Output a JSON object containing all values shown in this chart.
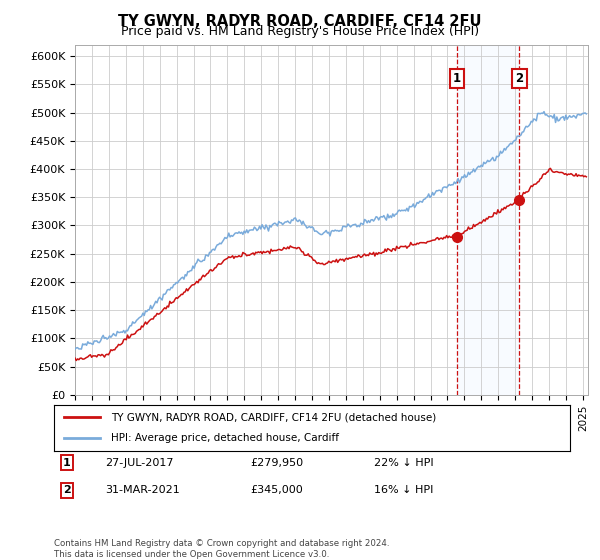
{
  "title": "TY GWYN, RADYR ROAD, CARDIFF, CF14 2FU",
  "subtitle": "Price paid vs. HM Land Registry's House Price Index (HPI)",
  "ylabel_ticks": [
    "£0",
    "£50K",
    "£100K",
    "£150K",
    "£200K",
    "£250K",
    "£300K",
    "£350K",
    "£400K",
    "£450K",
    "£500K",
    "£550K",
    "£600K"
  ],
  "ytick_values": [
    0,
    50000,
    100000,
    150000,
    200000,
    250000,
    300000,
    350000,
    400000,
    450000,
    500000,
    550000,
    600000
  ],
  "ylim": [
    0,
    620000
  ],
  "hpi_color": "#7aabdb",
  "price_color": "#cc1111",
  "marker1_date": 2017.57,
  "marker1_price": 279950,
  "marker1_label": "27-JUL-2017",
  "marker1_amount": "£279,950",
  "marker1_pct": "22% ↓ HPI",
  "marker2_date": 2021.25,
  "marker2_price": 345000,
  "marker2_label": "31-MAR-2021",
  "marker2_amount": "£345,000",
  "marker2_pct": "16% ↓ HPI",
  "legend_line1": "TY GWYN, RADYR ROAD, CARDIFF, CF14 2FU (detached house)",
  "legend_line2": "HPI: Average price, detached house, Cardiff",
  "footer": "Contains HM Land Registry data © Crown copyright and database right 2024.\nThis data is licensed under the Open Government Licence v3.0.",
  "background_color": "#ffffff",
  "grid_color": "#cccccc",
  "shade_color": "#ddeeff",
  "xlim_start": 1995,
  "xlim_end": 2025.3
}
